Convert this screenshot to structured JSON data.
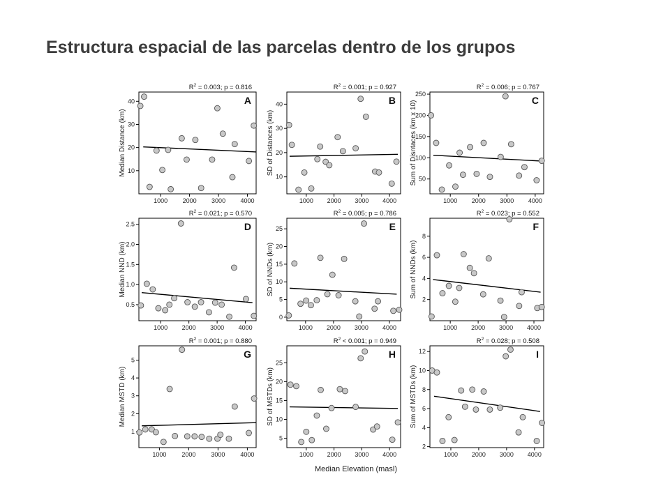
{
  "page_title": "Estructura espacial de las parcelas dentro de los grupos",
  "shared_xlabel": "Median Elevation (masl)",
  "colors": {
    "point_fill": "#c8c8c8",
    "point_stroke": "#555555",
    "line": "#000000",
    "frame": "#000000"
  },
  "chart_data": [
    {
      "type": "scatter",
      "panel": "A",
      "stat": {
        "r2": "0.003",
        "p": "0.816"
      },
      "ylabel": "Median Distance (km)",
      "xlim": [
        250,
        4300
      ],
      "ylim": [
        0,
        44
      ],
      "xticks": [
        1000,
        2000,
        3000,
        4000
      ],
      "yticks": [
        10,
        20,
        30,
        40
      ],
      "trend": [
        [
          400,
          20.3
        ],
        [
          4300,
          18.1
        ]
      ],
      "points": [
        [
          300,
          38
        ],
        [
          430,
          42
        ],
        [
          620,
          3
        ],
        [
          860,
          18.7
        ],
        [
          1060,
          10.3
        ],
        [
          1260,
          19
        ],
        [
          1350,
          2
        ],
        [
          1730,
          24
        ],
        [
          1900,
          14.8
        ],
        [
          2200,
          23.3
        ],
        [
          2400,
          2.5
        ],
        [
          2780,
          14.8
        ],
        [
          2960,
          37
        ],
        [
          3150,
          26
        ],
        [
          3480,
          7.2
        ],
        [
          3560,
          21.5
        ],
        [
          4050,
          14.2
        ],
        [
          4220,
          29.5
        ]
      ]
    },
    {
      "type": "scatter",
      "panel": "B",
      "stat": {
        "r2": "0.001",
        "p": "0.927"
      },
      "ylabel": "SD of Distances (km)",
      "xlim": [
        300,
        4400
      ],
      "ylim": [
        3,
        45
      ],
      "xticks": [
        1000,
        2000,
        3000,
        4000
      ],
      "yticks": [
        10,
        20,
        30,
        40
      ],
      "trend": [
        [
          400,
          18.5
        ],
        [
          4300,
          19.3
        ]
      ],
      "points": [
        [
          380,
          31.4
        ],
        [
          480,
          23.2
        ],
        [
          720,
          4.7
        ],
        [
          930,
          11.8
        ],
        [
          1180,
          5.2
        ],
        [
          1400,
          17.3
        ],
        [
          1500,
          22.5
        ],
        [
          1700,
          16.2
        ],
        [
          1830,
          14.8
        ],
        [
          2130,
          26.4
        ],
        [
          2320,
          20.6
        ],
        [
          2780,
          21.8
        ],
        [
          2960,
          42.2
        ],
        [
          3150,
          34.8
        ],
        [
          3480,
          12.2
        ],
        [
          3620,
          11.8
        ],
        [
          4080,
          7.2
        ],
        [
          4250,
          16.3
        ]
      ]
    },
    {
      "type": "scatter",
      "panel": "C",
      "stat": {
        "r2": "0.006",
        "p": "0.767"
      },
      "ylabel": "Sum of Disntaces (km x 10)",
      "xlim": [
        280,
        4300
      ],
      "ylim": [
        15,
        255
      ],
      "xticks": [
        1000,
        2000,
        3000,
        4000
      ],
      "yticks": [
        50,
        100,
        150,
        200,
        250
      ],
      "trend": [
        [
          400,
          106
        ],
        [
          4300,
          92
        ]
      ],
      "points": [
        [
          320,
          200
        ],
        [
          500,
          135
        ],
        [
          700,
          25
        ],
        [
          960,
          82
        ],
        [
          1180,
          32
        ],
        [
          1330,
          112
        ],
        [
          1450,
          60
        ],
        [
          1700,
          125
        ],
        [
          1930,
          62
        ],
        [
          2180,
          135
        ],
        [
          2400,
          55
        ],
        [
          2780,
          102
        ],
        [
          2950,
          245
        ],
        [
          3150,
          132
        ],
        [
          3430,
          58
        ],
        [
          3620,
          78
        ],
        [
          4050,
          47
        ],
        [
          4230,
          93
        ]
      ]
    },
    {
      "type": "scatter",
      "panel": "D",
      "stat": {
        "r2": "0.021",
        "p": "0.570"
      },
      "ylabel": "Median NND (km)",
      "xlim": [
        230,
        4380
      ],
      "ylim": [
        0.1,
        2.65
      ],
      "xticks": [
        1000,
        2000,
        3000,
        4000
      ],
      "yticks": [
        0.5,
        1.0,
        1.5,
        2.0,
        2.5
      ],
      "trend": [
        [
          330,
          0.8
        ],
        [
          4250,
          0.55
        ]
      ],
      "points": [
        [
          300,
          0.48
        ],
        [
          510,
          1.02
        ],
        [
          720,
          0.88
        ],
        [
          920,
          0.41
        ],
        [
          1160,
          0.36
        ],
        [
          1310,
          0.5
        ],
        [
          1480,
          0.66
        ],
        [
          1720,
          2.52
        ],
        [
          1950,
          0.56
        ],
        [
          2210,
          0.45
        ],
        [
          2430,
          0.56
        ],
        [
          2710,
          0.31
        ],
        [
          2930,
          0.55
        ],
        [
          3160,
          0.5
        ],
        [
          3430,
          0.2
        ],
        [
          3600,
          1.42
        ],
        [
          4020,
          0.64
        ],
        [
          4300,
          0.22
        ]
      ]
    },
    {
      "type": "scatter",
      "panel": "E",
      "stat": {
        "r2": "0.005",
        "p": "0.786"
      },
      "ylabel": "SD of NNDs (km)",
      "xlim": [
        330,
        4400
      ],
      "ylim": [
        -1,
        28
      ],
      "xticks": [
        1000,
        2000,
        3000,
        4000
      ],
      "yticks": [
        0,
        5,
        10,
        15,
        20,
        25
      ],
      "trend": [
        [
          430,
          8.2
        ],
        [
          4260,
          6.5
        ]
      ],
      "points": [
        [
          400,
          0.5
        ],
        [
          600,
          15.2
        ],
        [
          820,
          3.8
        ],
        [
          1020,
          4.7
        ],
        [
          1190,
          3.4
        ],
        [
          1400,
          4.8
        ],
        [
          1530,
          16.8
        ],
        [
          1780,
          6.5
        ],
        [
          1960,
          12
        ],
        [
          2180,
          6.2
        ],
        [
          2380,
          16.5
        ],
        [
          2780,
          4.5
        ],
        [
          2920,
          0.2
        ],
        [
          3090,
          26.5
        ],
        [
          3470,
          2.4
        ],
        [
          3590,
          4.5
        ],
        [
          4140,
          1.8
        ],
        [
          4350,
          2.1
        ]
      ]
    },
    {
      "type": "scatter",
      "panel": "F",
      "stat": {
        "r2": "0.023",
        "p": "0.552"
      },
      "ylabel": "Sum of NNDs (km)",
      "xlim": [
        270,
        4350
      ],
      "ylim": [
        0,
        9.7
      ],
      "xticks": [
        1000,
        2000,
        3000,
        4000
      ],
      "yticks": [
        2,
        4,
        6,
        8
      ],
      "trend": [
        [
          380,
          3.9
        ],
        [
          4240,
          2.7
        ]
      ],
      "points": [
        [
          330,
          0.4
        ],
        [
          520,
          6.2
        ],
        [
          720,
          2.6
        ],
        [
          950,
          3.3
        ],
        [
          1180,
          1.8
        ],
        [
          1320,
          3.1
        ],
        [
          1480,
          6.3
        ],
        [
          1700,
          5.0
        ],
        [
          1850,
          4.5
        ],
        [
          2180,
          2.5
        ],
        [
          2380,
          5.9
        ],
        [
          2800,
          1.9
        ],
        [
          2930,
          0.35
        ],
        [
          3120,
          9.6
        ],
        [
          3470,
          1.4
        ],
        [
          3560,
          2.7
        ],
        [
          4120,
          1.2
        ],
        [
          4280,
          1.3
        ]
      ]
    },
    {
      "type": "scatter",
      "panel": "G",
      "stat": {
        "r2": "0.001",
        "p": "0.880"
      },
      "ylabel": "Median MSTD (km)",
      "xlim": [
        300,
        4300
      ],
      "ylim": [
        0.1,
        5.8
      ],
      "xticks": [
        1000,
        2000,
        3000,
        4000
      ],
      "yticks": [
        1,
        2,
        3,
        4,
        5
      ],
      "trend": [
        [
          400,
          1.32
        ],
        [
          4300,
          1.5
        ]
      ],
      "points": [
        [
          320,
          0.95
        ],
        [
          520,
          1.12
        ],
        [
          740,
          1.12
        ],
        [
          880,
          0.96
        ],
        [
          1140,
          0.42
        ],
        [
          1350,
          3.38
        ],
        [
          1530,
          0.75
        ],
        [
          1770,
          5.58
        ],
        [
          1950,
          0.73
        ],
        [
          2200,
          0.73
        ],
        [
          2440,
          0.7
        ],
        [
          2700,
          0.6
        ],
        [
          2980,
          0.6
        ],
        [
          3080,
          0.82
        ],
        [
          3370,
          0.6
        ],
        [
          3570,
          2.4
        ],
        [
          4050,
          0.92
        ],
        [
          4230,
          2.85
        ]
      ]
    },
    {
      "type": "scatter",
      "panel": "H",
      "stat": {
        "r2": "< 0.001",
        "p": "0.949"
      },
      "ylabel": "SD of MSTDs (km)",
      "xlim": [
        300,
        4400
      ],
      "ylim": [
        2.5,
        29.5
      ],
      "xticks": [
        1000,
        2000,
        3000,
        4000
      ],
      "yticks": [
        5,
        10,
        15,
        20,
        25
      ],
      "trend": [
        [
          400,
          13.3
        ],
        [
          4300,
          12.9
        ]
      ],
      "points": [
        [
          430,
          19.2
        ],
        [
          640,
          18.8
        ],
        [
          820,
          4.0
        ],
        [
          1000,
          6.7
        ],
        [
          1200,
          4.5
        ],
        [
          1380,
          11.0
        ],
        [
          1520,
          17.8
        ],
        [
          1720,
          7.5
        ],
        [
          1910,
          13.0
        ],
        [
          2210,
          18.0
        ],
        [
          2400,
          17.5
        ],
        [
          2780,
          13.3
        ],
        [
          2960,
          26.2
        ],
        [
          3110,
          28.0
        ],
        [
          3410,
          7.3
        ],
        [
          3550,
          8.1
        ],
        [
          4100,
          4.6
        ],
        [
          4300,
          9.2
        ]
      ]
    },
    {
      "type": "scatter",
      "panel": "I",
      "stat": {
        "r2": "0.028",
        "p": "0.508"
      },
      "ylabel": "Sum of MSTDs (km)",
      "xlim": [
        250,
        4330
      ],
      "ylim": [
        1.9,
        12.6
      ],
      "xticks": [
        1000,
        2000,
        3000,
        4000
      ],
      "yticks": [
        2,
        4,
        6,
        8,
        10,
        12
      ],
      "trend": [
        [
          400,
          7.3
        ],
        [
          4200,
          5.7
        ]
      ],
      "points": [
        [
          330,
          10.0
        ],
        [
          500,
          9.8
        ],
        [
          700,
          2.6
        ],
        [
          920,
          5.1
        ],
        [
          1130,
          2.7
        ],
        [
          1370,
          7.9
        ],
        [
          1510,
          6.2
        ],
        [
          1770,
          8.0
        ],
        [
          1900,
          5.9
        ],
        [
          2180,
          7.8
        ],
        [
          2400,
          5.9
        ],
        [
          2770,
          6.1
        ],
        [
          2970,
          11.5
        ],
        [
          3140,
          12.2
        ],
        [
          3430,
          3.5
        ],
        [
          3580,
          5.1
        ],
        [
          4080,
          2.6
        ],
        [
          4270,
          4.5
        ]
      ]
    }
  ]
}
